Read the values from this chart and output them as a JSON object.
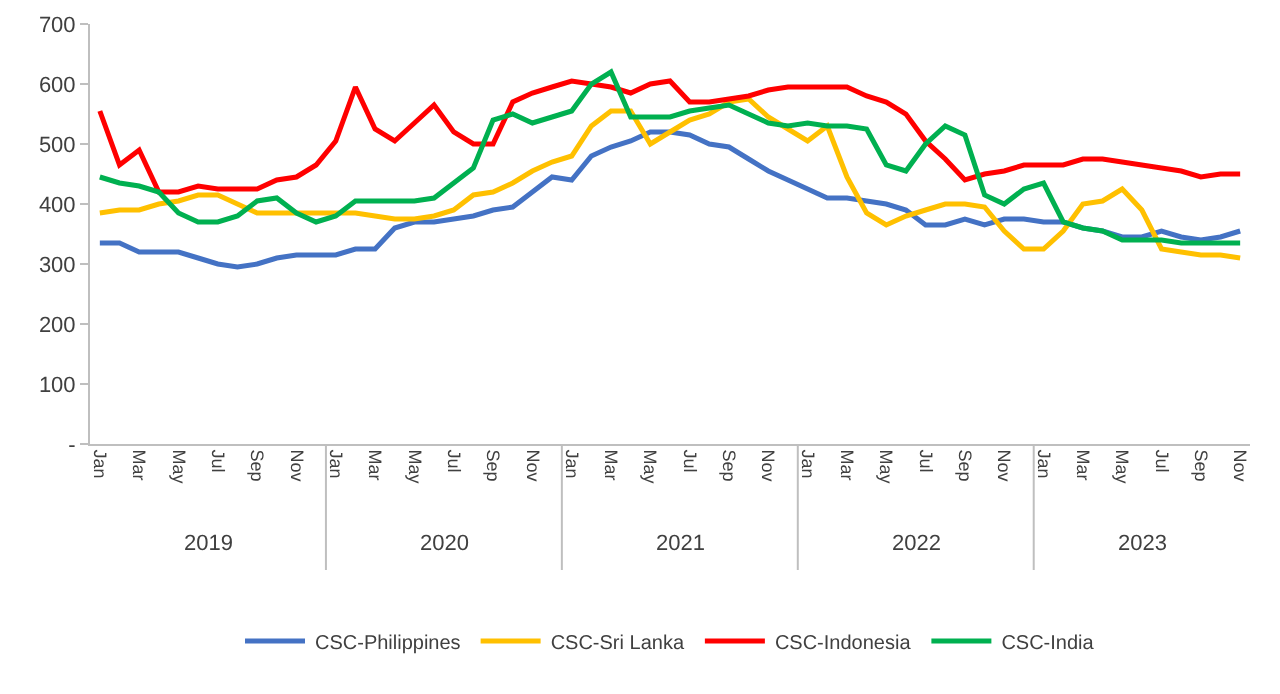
{
  "chart_data": {
    "type": "line",
    "categories": [
      "Jan",
      null,
      "Mar",
      null,
      "May",
      null,
      "Jul",
      null,
      "Sep",
      null,
      "Nov",
      null,
      "Jan",
      null,
      "Mar",
      null,
      "May",
      null,
      "Jul",
      null,
      "Sep",
      null,
      "Nov",
      null,
      "Jan",
      null,
      "Mar",
      null,
      "May",
      null,
      "Jul",
      null,
      "Sep",
      null,
      "Nov",
      null,
      "Jan",
      null,
      "Mar",
      null,
      "May",
      null,
      "Jul",
      null,
      "Sep",
      null,
      "Nov",
      null,
      "Jan",
      null,
      "Mar",
      null,
      "May",
      null,
      "Jul",
      null,
      "Sep",
      null,
      "Nov"
    ],
    "annotations": [
      "2019",
      "2020",
      "2021",
      "2022",
      "2023"
    ],
    "ylim": [
      0,
      700
    ],
    "yticks": [
      {
        "value": 0,
        "label": "-"
      },
      100,
      200,
      300,
      400,
      500,
      600,
      700
    ],
    "grid": false,
    "legend": "bottom",
    "marker": "none",
    "line_style": "solid",
    "series": [
      {
        "name": "CSC-Philippines",
        "color": "#4472c4",
        "values": [
          335,
          335,
          320,
          320,
          320,
          310,
          300,
          295,
          300,
          310,
          315,
          315,
          315,
          325,
          325,
          360,
          370,
          370,
          375,
          380,
          390,
          395,
          420,
          445,
          440,
          480,
          495,
          505,
          520,
          520,
          515,
          500,
          495,
          475,
          455,
          440,
          425,
          410,
          410,
          405,
          400,
          390,
          365,
          365,
          375,
          365,
          375,
          375,
          370,
          370,
          360,
          355,
          345,
          345,
          355,
          345,
          340,
          345,
          355
        ]
      },
      {
        "name": "CSC-Sri Lanka",
        "color": "#ffc000",
        "values": [
          385,
          390,
          390,
          400,
          405,
          415,
          415,
          400,
          385,
          385,
          385,
          385,
          385,
          385,
          380,
          375,
          375,
          380,
          390,
          415,
          420,
          435,
          455,
          470,
          480,
          530,
          555,
          555,
          500,
          520,
          540,
          550,
          570,
          575,
          545,
          525,
          505,
          530,
          445,
          385,
          365,
          380,
          390,
          400,
          400,
          395,
          355,
          325,
          325,
          355,
          400,
          405,
          425,
          390,
          325,
          320,
          315,
          315,
          310
        ]
      },
      {
        "name": "CSC-Indonesia",
        "color": "#ff0000",
        "values": [
          555,
          465,
          490,
          420,
          420,
          430,
          425,
          425,
          425,
          440,
          445,
          465,
          505,
          595,
          525,
          505,
          535,
          565,
          520,
          500,
          500,
          570,
          585,
          595,
          605,
          600,
          595,
          585,
          600,
          605,
          570,
          570,
          575,
          580,
          590,
          595,
          595,
          595,
          595,
          580,
          570,
          550,
          505,
          475,
          440,
          450,
          455,
          465,
          465,
          465,
          475,
          475,
          470,
          465,
          460,
          455,
          445,
          450,
          450
        ]
      },
      {
        "name": "CSC-India",
        "color": "#00b050",
        "values": [
          445,
          435,
          430,
          420,
          385,
          370,
          370,
          380,
          405,
          410,
          385,
          370,
          380,
          405,
          405,
          405,
          405,
          410,
          435,
          460,
          540,
          550,
          535,
          545,
          555,
          600,
          620,
          545,
          545,
          545,
          555,
          560,
          565,
          550,
          535,
          530,
          535,
          530,
          530,
          525,
          465,
          455,
          500,
          530,
          515,
          415,
          400,
          425,
          435,
          370,
          360,
          355,
          340,
          340,
          340,
          335,
          335,
          335,
          335
        ]
      }
    ]
  }
}
